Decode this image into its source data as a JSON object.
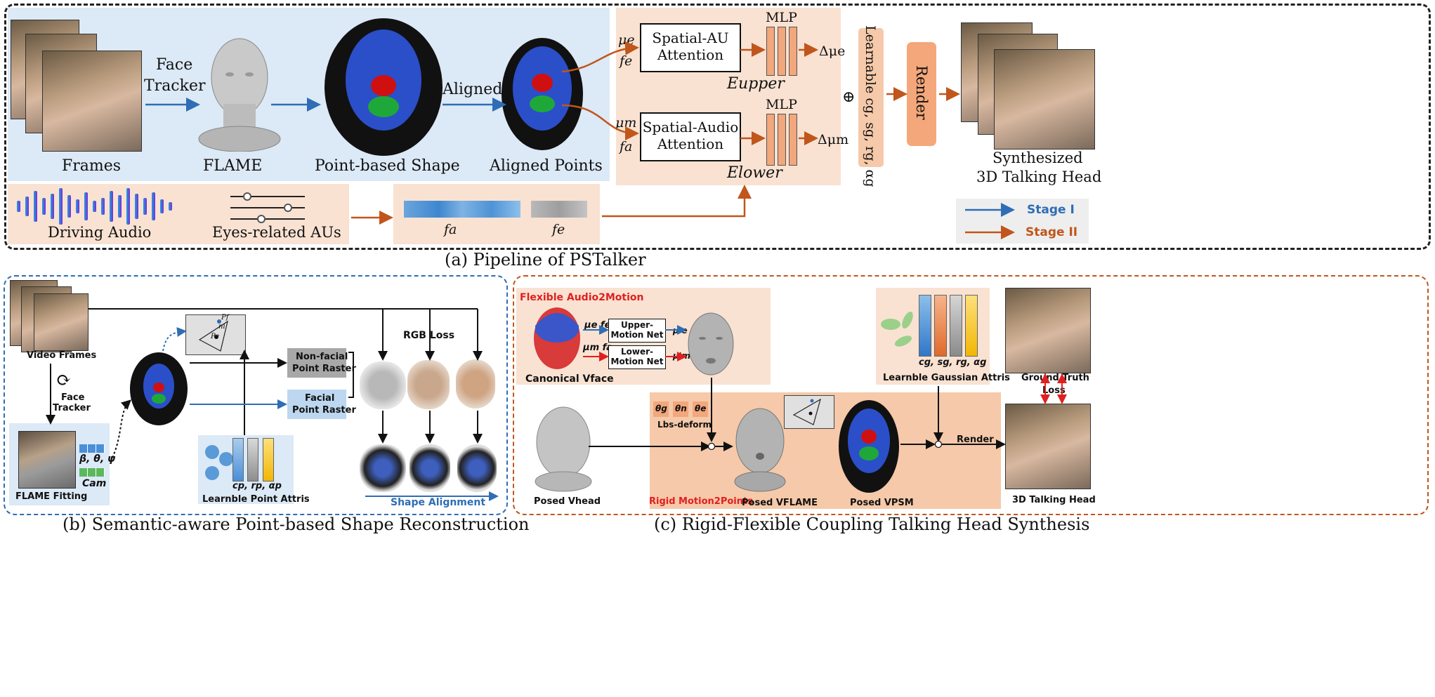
{
  "panel_a": {
    "caption": "(a) Pipeline of PSTalker",
    "frames": "Frames",
    "face_tracker": [
      "Face",
      "Tracker"
    ],
    "flame": "FLAME",
    "point_shape": "Point-based Shape",
    "aligned": "Aligned",
    "aligned_points": "Aligned Points",
    "spatial_au": [
      "Spatial-AU",
      "Attention"
    ],
    "spatial_audio": [
      "Spatial-Audio",
      "Attention"
    ],
    "mlp": "MLP",
    "mu_e": "μe",
    "f_e": "fe",
    "mu_m": "μm",
    "f_a": "fa",
    "delta_mu_e": "Δμe",
    "delta_mu_m": "Δμm",
    "e_upper": "Eupper",
    "e_lower": "Elower",
    "learnable": "Learnable cg, sg, rg, αg",
    "oplus": "⊕",
    "render": "Render",
    "synthesized": [
      "Synthesized",
      "3D Talking Head"
    ],
    "driving_audio": "Driving Audio",
    "eyes_aus": "Eyes-related AUs",
    "fa_label": "fa",
    "fe_label": "fe",
    "legend": {
      "stage1": "Stage I",
      "stage2": "Stage II"
    }
  },
  "panel_b": {
    "caption": "(b) Semantic-aware Point-based Shape Reconstruction",
    "video_frames": "Video Frames",
    "face_tracker": [
      "Face",
      "Tracker"
    ],
    "flame_params": "β, θ, ψ",
    "cam": "Cam",
    "flame_fitting": "FLAME Fitting",
    "non_facial": [
      "Non-facial",
      "Point Raster"
    ],
    "facial": [
      "Facial",
      "Point Raster"
    ],
    "rgb_loss": "RGB Loss",
    "learnable_point": "Learnble Point Attris",
    "point_attr_labels": "cp, rp, αp",
    "shape_alignment": "Shape Alignment",
    "pf": "Pf",
    "pe": "Pe",
    "ni": "ni"
  },
  "panel_c": {
    "caption": "(c) Rigid-Flexible Coupling Talking Head Synthesis",
    "flexible": "Flexible Audio2Motion",
    "canonical": "Canonical Vface",
    "upper_motion": [
      "Upper-",
      "Motion Net"
    ],
    "lower_motion": [
      "Lower-",
      "Motion Net"
    ],
    "mu_e_fe": "μe fe",
    "mu_m_fa": "μm fa",
    "mu_e_prime": "μ'e",
    "mu_m_prime": "μ'm",
    "learnable_gauss": "Learnble Gaussian Attris",
    "gauss_labels": "cg, sg, rg, αg",
    "ground_truth": "Ground Truth",
    "loss": "Loss",
    "posed_head": "Posed Vhead",
    "lbs": "Lbs-deform",
    "theta_g": "θg",
    "theta_n": "θn",
    "theta_e": "θe",
    "rigid": "Rigid Motion2Points",
    "posed_flame": "Posed VFLAME",
    "posed_psm": "Posed VPSM",
    "render": "Render",
    "talking_head": "3D Talking Head"
  },
  "colors": {
    "stage1": "#2f6db5",
    "stage2": "#c0561c",
    "blue_bg": "#dce9f6",
    "peach_bg": "#f9e2d2"
  }
}
